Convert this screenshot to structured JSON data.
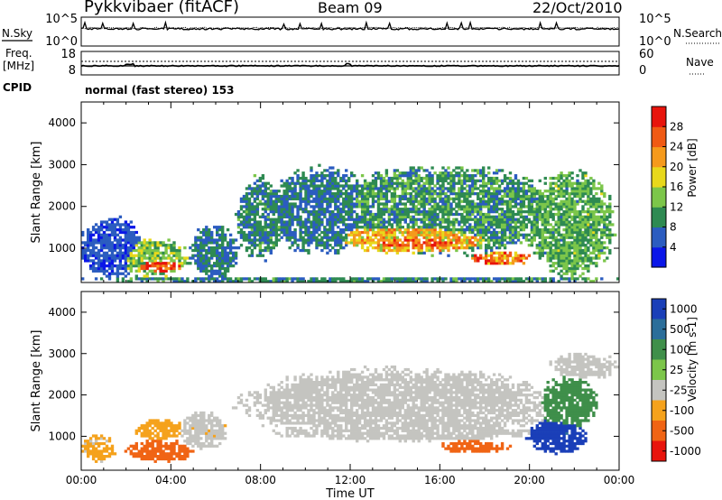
{
  "header": {
    "title": "Pykkvibaer (fitACF)",
    "beam": "Beam 09",
    "date": "22/Oct/2010"
  },
  "status_panels": {
    "nsky_label": "N.Sky",
    "nsearch_label": "N.Search",
    "freq_label_1": "Freq.",
    "freq_label_2": "[MHz]",
    "nave_label": "Nave",
    "cpid_label": "CPID",
    "cpid_value": "normal (fast stereo) 153",
    "left_ticks_top": [
      "10^5",
      "10^0"
    ],
    "right_ticks_top": [
      "10^5",
      "10^0"
    ],
    "left_ticks_freq": [
      "18",
      "8"
    ],
    "right_ticks_nave": [
      "60",
      "0"
    ]
  },
  "chart_data": [
    {
      "type": "heatmap",
      "name": "power",
      "xlabel": "",
      "ylabel": "Slant Range [km]",
      "x_ticks": [
        "00:00",
        "04:00",
        "08:00",
        "12:00",
        "16:00",
        "20:00",
        "00:00"
      ],
      "x_range_hours": [
        0,
        24
      ],
      "y_range_km": [
        180,
        4500
      ],
      "y_ticks": [
        1000,
        2000,
        3000,
        4000
      ],
      "colorbar": {
        "label": "Power [dB]",
        "ticks": [
          4,
          8,
          12,
          16,
          20,
          24,
          28
        ],
        "range": [
          0,
          32
        ],
        "colors": [
          "#0a16e8",
          "#2b5cc0",
          "#2e8a52",
          "#7cc64a",
          "#e8d81c",
          "#f59a1c",
          "#f05a14",
          "#e8140c"
        ]
      },
      "features": [
        {
          "t": [
            0.0,
            2.7
          ],
          "r": [
            300,
            1700
          ],
          "value": 5
        },
        {
          "t": [
            1.5,
            4.8
          ],
          "r": [
            350,
            1200
          ],
          "value": 14
        },
        {
          "t": [
            2.0,
            4.6
          ],
          "r": [
            400,
            850
          ],
          "value": 28
        },
        {
          "t": [
            4.8,
            7.0
          ],
          "r": [
            300,
            1500
          ],
          "value": 8
        },
        {
          "t": [
            7.0,
            9.0
          ],
          "r": [
            800,
            2700
          ],
          "value": 9
        },
        {
          "t": [
            8.5,
            13.0
          ],
          "r": [
            900,
            2900
          ],
          "value": 8
        },
        {
          "t": [
            10.5,
            21.5
          ],
          "r": [
            900,
            2900
          ],
          "value": 10
        },
        {
          "t": [
            11.0,
            19.0
          ],
          "r": [
            900,
            1700
          ],
          "value": 20
        },
        {
          "t": [
            12.0,
            18.0
          ],
          "r": [
            950,
            1400
          ],
          "value": 27
        },
        {
          "t": [
            17.5,
            20.0
          ],
          "r": [
            600,
            900
          ],
          "value": 24
        },
        {
          "t": [
            20.0,
            23.7
          ],
          "r": [
            400,
            2800
          ],
          "value": 12
        },
        {
          "t": [
            0.0,
            24.0
          ],
          "r": [
            180,
            320
          ],
          "value": 9
        }
      ]
    },
    {
      "type": "heatmap",
      "name": "velocity",
      "xlabel": "Time UT",
      "ylabel": "Slant Range [km]",
      "x_ticks": [
        "00:00",
        "04:00",
        "08:00",
        "12:00",
        "16:00",
        "20:00",
        "00:00"
      ],
      "x_range_hours": [
        0,
        24
      ],
      "y_range_km": [
        180,
        4500
      ],
      "y_ticks": [
        1000,
        2000,
        3000,
        4000
      ],
      "colorbar": {
        "label": "Velocity [m s-1]",
        "ticks": [
          1000,
          500,
          100,
          25,
          -25,
          -100,
          -500,
          -1000
        ],
        "colors": [
          "#1a3fb8",
          "#2b6e9a",
          "#3f8f4a",
          "#7cc64a",
          "#c4c4c0",
          "#f5a21c",
          "#f06414",
          "#e8140c"
        ]
      },
      "features": [
        {
          "t": [
            0.0,
            1.5
          ],
          "r": [
            400,
            1000
          ],
          "value": -30
        },
        {
          "t": [
            2.0,
            5.0
          ],
          "r": [
            400,
            900
          ],
          "value": -180
        },
        {
          "t": [
            2.5,
            4.5
          ],
          "r": [
            900,
            1400
          ],
          "value": -50
        },
        {
          "t": [
            4.5,
            6.5
          ],
          "r": [
            700,
            1600
          ],
          "value": -20
        },
        {
          "t": [
            7.5,
            21.0
          ],
          "r": [
            1000,
            2600
          ],
          "value": 0
        },
        {
          "t": [
            9.0,
            20.0
          ],
          "r": [
            900,
            1300
          ],
          "value": -5
        },
        {
          "t": [
            16.0,
            19.0
          ],
          "r": [
            600,
            900
          ],
          "value": -200
        },
        {
          "t": [
            20.0,
            22.5
          ],
          "r": [
            600,
            1400
          ],
          "value": 600
        },
        {
          "t": [
            21.0,
            23.8
          ],
          "r": [
            2400,
            3000
          ],
          "value": 5
        },
        {
          "t": [
            20.5,
            23.0
          ],
          "r": [
            1200,
            2400
          ],
          "value": 50
        }
      ]
    }
  ]
}
